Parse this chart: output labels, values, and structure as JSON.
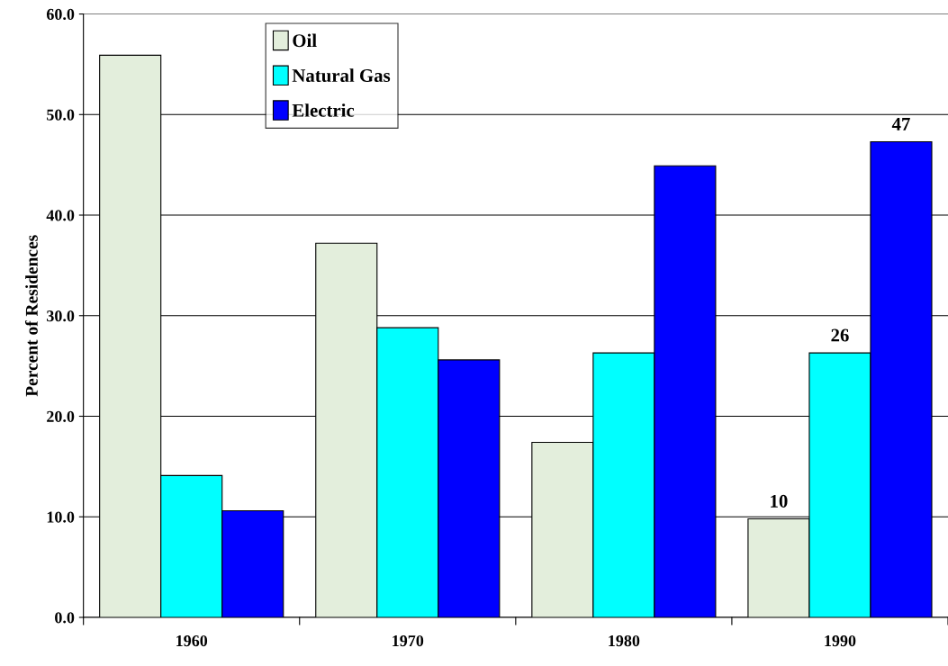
{
  "chart_data": {
    "type": "bar",
    "ylabel": "Percent of Residences",
    "categories": [
      "1960",
      "1970",
      "1980",
      "1990"
    ],
    "series": [
      {
        "name": "Oil",
        "color": "#e3eedc",
        "values": [
          55.9,
          37.2,
          17.4,
          9.8
        ],
        "value_labels": [
          null,
          null,
          null,
          "10"
        ]
      },
      {
        "name": "Natural Gas",
        "color": "#00ffff",
        "values": [
          14.1,
          28.8,
          26.3,
          26.3
        ],
        "value_labels": [
          null,
          null,
          null,
          "26"
        ]
      },
      {
        "name": "Electric",
        "color": "#0000ff",
        "values": [
          10.6,
          25.6,
          44.9,
          47.3
        ],
        "value_labels": [
          null,
          null,
          null,
          "47"
        ]
      }
    ],
    "ylim": [
      0,
      60
    ],
    "yticks": [
      {
        "value": 0,
        "label": "0.0"
      },
      {
        "value": 10,
        "label": "10.0"
      },
      {
        "value": 20,
        "label": "20.0"
      },
      {
        "value": 30,
        "label": "30.0"
      },
      {
        "value": 40,
        "label": "40.0"
      },
      {
        "value": 50,
        "label": "50.0"
      },
      {
        "value": 60,
        "label": "60.0"
      }
    ],
    "grid": "y",
    "legend": "top left"
  }
}
